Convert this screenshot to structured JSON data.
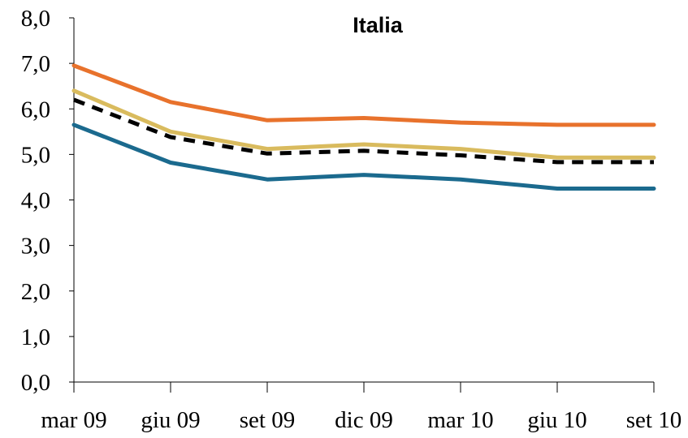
{
  "chart_data": {
    "type": "line",
    "title": "Italia",
    "xlabel": "",
    "ylabel": "",
    "categories": [
      "mar 09",
      "giu 09",
      "set 09",
      "dic 09",
      "mar 10",
      "giu 10",
      "set 10"
    ],
    "ylim": [
      0,
      8
    ],
    "yticks": [
      "0,0",
      "1,0",
      "2,0",
      "3,0",
      "4,0",
      "5,0",
      "6,0",
      "7,0",
      "8,0"
    ],
    "grid": false,
    "legend": "none",
    "series": [
      {
        "color": "#E8722C",
        "style": "solid",
        "values": [
          6.95,
          6.15,
          5.75,
          5.8,
          5.7,
          5.65,
          5.65
        ]
      },
      {
        "color": "#D9BB5E",
        "style": "solid",
        "values": [
          6.4,
          5.5,
          5.12,
          5.22,
          5.12,
          4.93,
          4.93
        ]
      },
      {
        "color": "#000000",
        "style": "dashed",
        "values": [
          6.2,
          5.38,
          5.02,
          5.08,
          4.98,
          4.83,
          4.83
        ]
      },
      {
        "color": "#1B6A8E",
        "style": "solid",
        "values": [
          5.65,
          4.82,
          4.45,
          4.55,
          4.45,
          4.25,
          4.25
        ]
      }
    ]
  }
}
